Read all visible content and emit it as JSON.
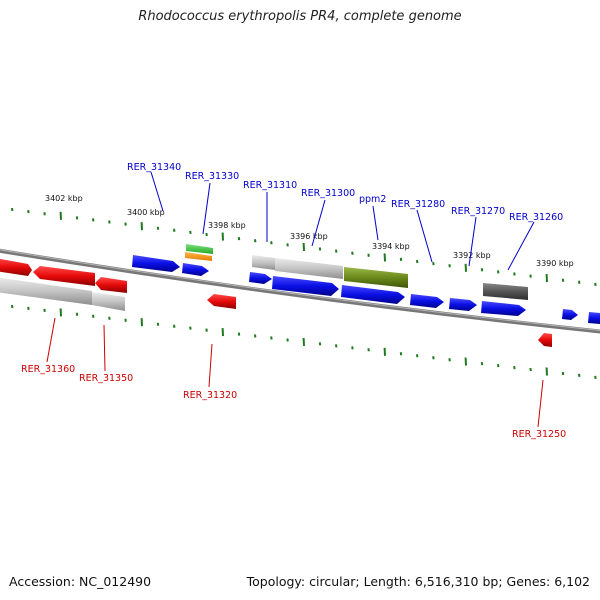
{
  "title": "Rhodococcus erythropolis PR4, complete genome",
  "footer": {
    "accession": "Accession: NC_012490",
    "summary": "Topology: circular; Length: 6,516,310 bp; Genes: 6,102"
  },
  "colors": {
    "forward_label": "#0000cc",
    "reverse_label": "#cc0000",
    "forward_gene": "#0a10e6",
    "reverse_gene": "#e60a0a",
    "tick": "#1f7a1f",
    "backbone": "#777777"
  },
  "scale_ticks": [
    "3402 kbp",
    "3400 kbp",
    "3398 kbp",
    "3396 kbp",
    "3394 kbp",
    "3392 kbp",
    "3390 kbp"
  ],
  "forward_labels": [
    "RER_31340",
    "RER_31330",
    "RER_31310",
    "RER_31300",
    "ppm2",
    "RER_31280",
    "RER_31270",
    "RER_31260"
  ],
  "reverse_labels": [
    "RER_31360",
    "RER_31350",
    "RER_31320",
    "RER_31250"
  ]
}
